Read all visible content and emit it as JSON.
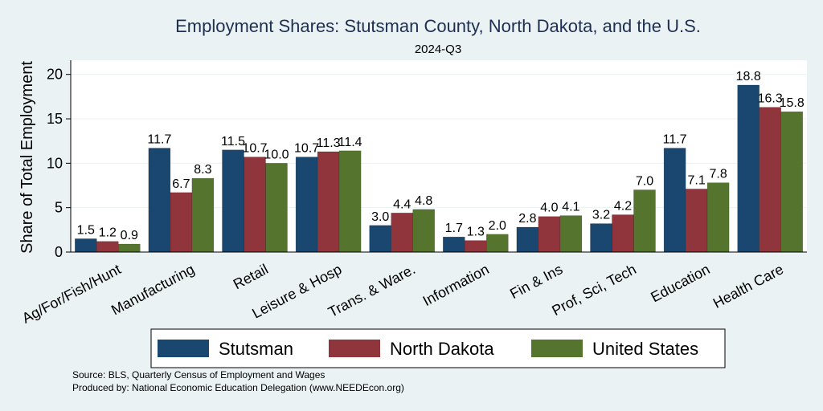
{
  "chart_data": {
    "type": "bar",
    "title": "Employment Shares: Stutsman County, North Dakota, and the U.S.",
    "subtitle": "2024-Q3",
    "ylabel": "Share of Total Employment",
    "xlabel": "",
    "ylim": [
      0,
      21.6
    ],
    "yticks": [
      0,
      5,
      10,
      15,
      20
    ],
    "grid": true,
    "legend_position": "bottom",
    "categories": [
      "Ag/For/Fish/Hunt",
      "Manufacturing",
      "Retail",
      "Leisure & Hosp",
      "Trans. & Ware.",
      "Information",
      "Fin & Ins",
      "Prof, Sci, Tech",
      "Education",
      "Health Care"
    ],
    "series": [
      {
        "name": "Stutsman",
        "color": "#1a476f",
        "values": [
          1.5,
          11.7,
          11.5,
          10.7,
          3.0,
          1.7,
          2.8,
          3.2,
          11.7,
          18.8
        ],
        "labels": [
          "1.5",
          "11.7",
          "11.5",
          "10.7",
          "3.0",
          "1.7",
          "2.8",
          "3.2",
          "11.7",
          "18.8"
        ]
      },
      {
        "name": "North Dakota",
        "color": "#90353b",
        "values": [
          1.2,
          6.7,
          10.7,
          11.3,
          4.4,
          1.3,
          4.0,
          4.2,
          7.1,
          16.3
        ],
        "labels": [
          "1.2",
          "6.7",
          "10.7",
          "11.3",
          "4.4",
          "1.3",
          "4.0",
          "4.2",
          "7.1",
          "16.3"
        ]
      },
      {
        "name": "United States",
        "color": "#55752f",
        "values": [
          0.9,
          8.3,
          10.0,
          11.4,
          4.8,
          2.0,
          4.1,
          7.0,
          7.8,
          15.8
        ],
        "labels": [
          "0.9",
          "8.3",
          "10.0",
          "11.4",
          "4.8",
          "2.0",
          "4.1",
          "7.0",
          "7.8",
          "15.8"
        ]
      }
    ]
  },
  "notes": {
    "source": "Source: BLS, Quarterly Census of Employment and Wages",
    "produced_by": "Produced by: National Economic Education Delegation (www.NEEDEcon.org)"
  },
  "colors": {
    "background": "#eaf2f3",
    "plot_area": "#ffffff",
    "title": "#1e2f52"
  }
}
